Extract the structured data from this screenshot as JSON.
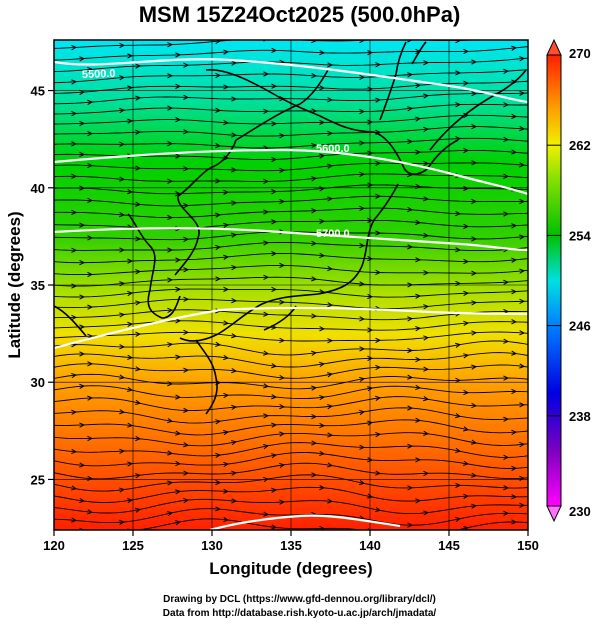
{
  "chart_data": {
    "type": "heatmap",
    "title": "MSM 15Z24Oct2025 (500.0hPa)",
    "xlabel": "Longitude (degrees)",
    "ylabel": "Latitude  (degrees)",
    "xlim": [
      120,
      150
    ],
    "ylim": [
      22.4,
      47.6
    ],
    "x_ticks": [
      "120",
      "125",
      "130",
      "135",
      "140",
      "145",
      "150"
    ],
    "y_ticks": [
      "25",
      "30",
      "35",
      "40",
      "45"
    ],
    "grid": true,
    "colorbar": {
      "min": 230,
      "max": 270,
      "ticks": [
        "230",
        "238",
        "246",
        "254",
        "262",
        "270"
      ]
    },
    "contours": [
      {
        "label": "5500.0",
        "level": 5500.0
      },
      {
        "label": "5600.0",
        "level": 5600.0
      },
      {
        "label": "5700.0",
        "level": 5700.0
      }
    ],
    "field_description": "temperature shading with height contours and wind streamlines"
  },
  "credits": {
    "line1": "Drawing by DCL (https://www.gfd-dennou.org/library/dcl/)",
    "line2": "Data from http://database.rish.kyoto-u.ac.jp/arch/jmadata/"
  },
  "colors": {
    "cold": "#00e0f0",
    "mid": "#00c800",
    "warm": "#ff4000"
  }
}
